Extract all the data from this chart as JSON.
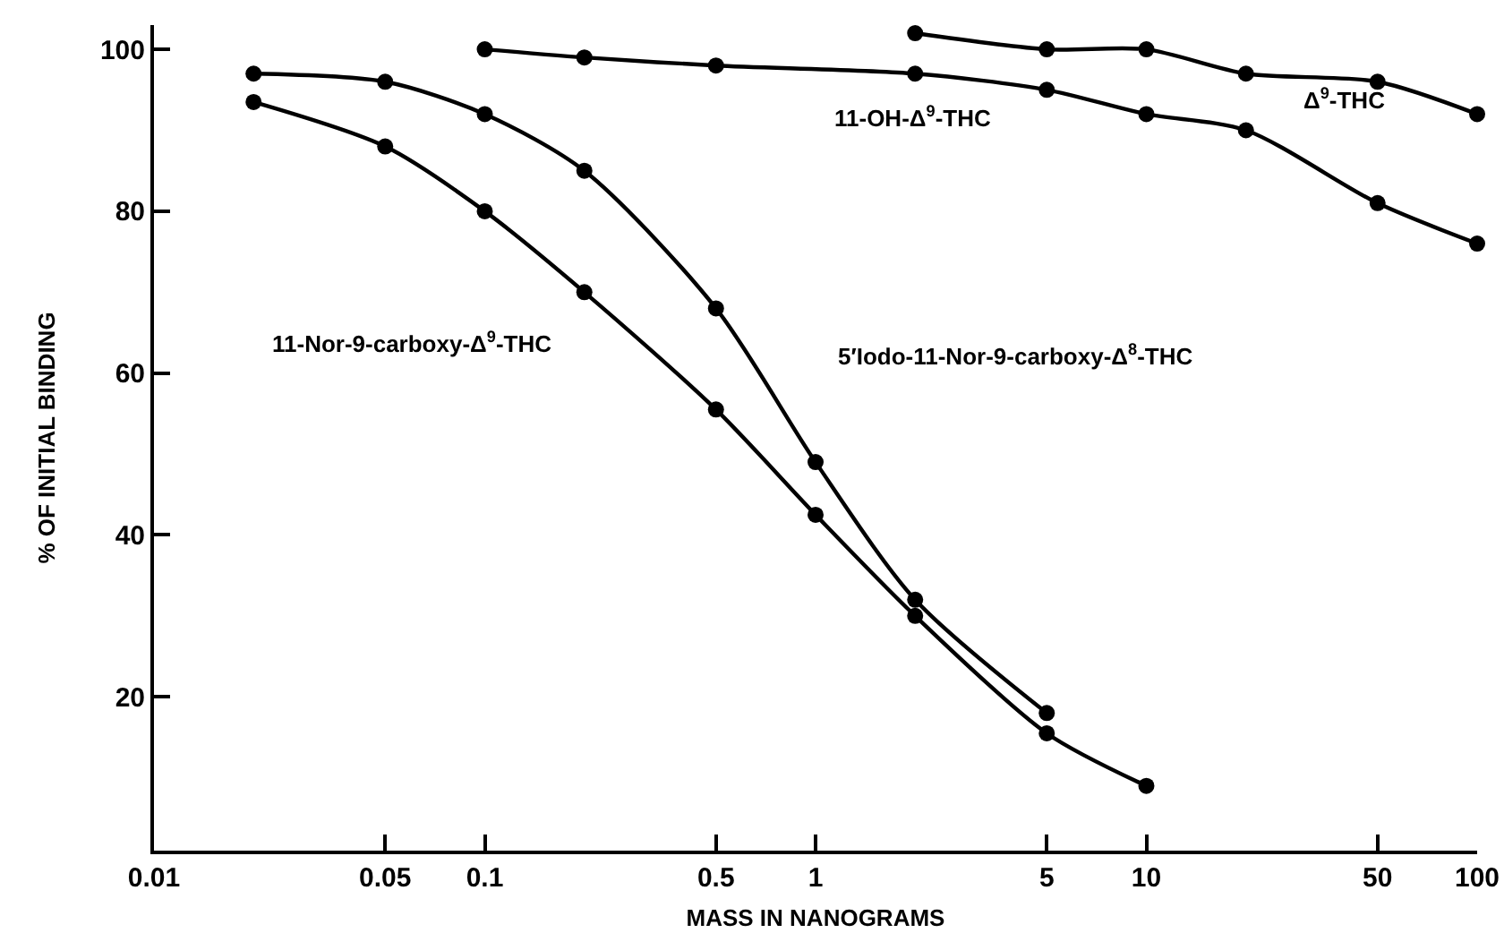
{
  "chart_data": {
    "type": "line",
    "xlabel": "MASS IN NANOGRAMS",
    "ylabel": "% OF INITIAL BINDING",
    "log": "x",
    "xlim": [
      0.01,
      100
    ],
    "xticks": [
      0.01,
      0.05,
      0.1,
      0.5,
      1,
      5,
      10,
      50,
      100
    ],
    "ylim": [
      1,
      103
    ],
    "yticks": [
      20,
      40,
      60,
      80,
      100
    ],
    "grid": false,
    "marker": "circle",
    "line_style": "solid",
    "series": [
      {
        "name": "Δ$^{9}$-THC",
        "color": "#000000",
        "x": [
          2,
          5,
          10,
          20,
          50,
          100
        ],
        "values": [
          102,
          100,
          100,
          97,
          96,
          92
        ]
      },
      {
        "name": "11-OH-Δ$^{9}$-THC",
        "color": "#000000",
        "x": [
          0.1,
          0.2,
          0.5,
          2,
          5,
          10,
          20,
          50,
          100
        ],
        "values": [
          100,
          99,
          98,
          97,
          95,
          92,
          90,
          81,
          76
        ]
      },
      {
        "name": "5′Iodo-11-Nor-9-carboxy-Δ$^{8}$-THC",
        "color": "#000000",
        "x": [
          0.02,
          0.05,
          0.1,
          0.2,
          0.5,
          1,
          2,
          5
        ],
        "values": [
          97,
          96,
          92,
          85,
          68,
          49,
          32,
          18
        ]
      },
      {
        "name": "11-Nor-9-carboxy-Δ$^{9}$-THC",
        "color": "#000000",
        "x": [
          0.02,
          0.05,
          0.1,
          0.2,
          0.5,
          1,
          2,
          5,
          10
        ],
        "values": [
          93.5,
          88,
          80,
          70,
          55.5,
          42.5,
          30,
          15.5,
          9
        ]
      }
    ]
  }
}
